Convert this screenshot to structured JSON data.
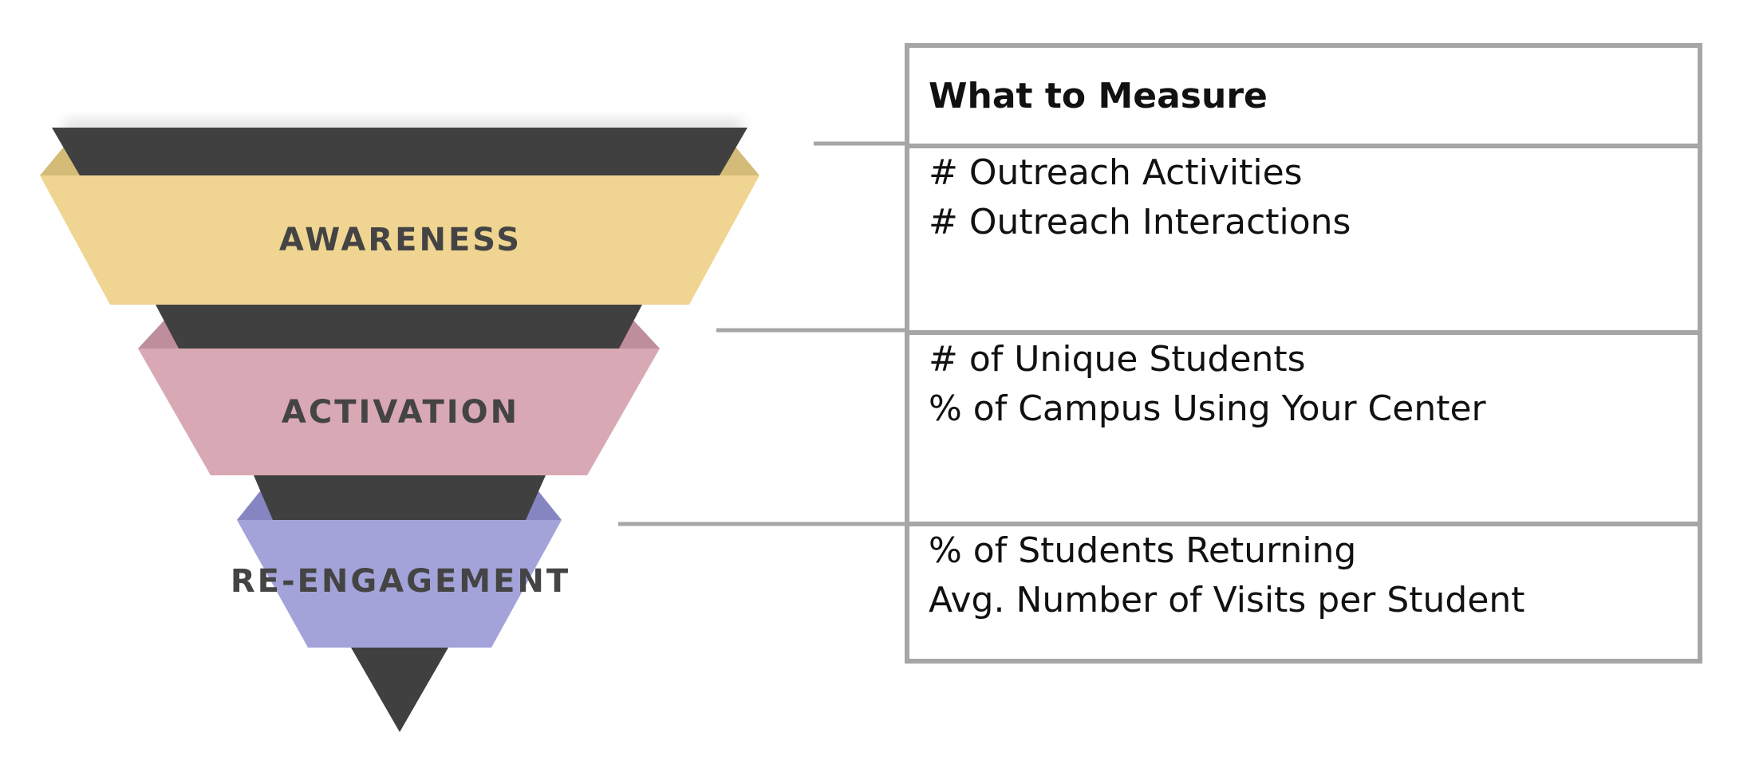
{
  "funnel": {
    "stages": [
      {
        "label": "AWARENESS",
        "color": "#f0d592",
        "edge_color": "#d4bb78"
      },
      {
        "label": "ACTIVATION",
        "color": "#d8a8b5",
        "edge_color": "#bf8e9c"
      },
      {
        "label": "RE-ENGAGEMENT",
        "color": "#a3a3da",
        "edge_color": "#8585c2"
      }
    ],
    "band_color": "#404040",
    "connector_color": "#a6a6a6"
  },
  "table": {
    "header": "What to Measure",
    "rows": [
      {
        "lines": [
          "# Outreach Activities",
          "# Outreach Interactions"
        ]
      },
      {
        "lines": [
          "# of Unique Students",
          "% of Campus Using Your Center"
        ]
      },
      {
        "lines": [
          "% of Students Returning",
          "Avg. Number of Visits per Student"
        ]
      }
    ],
    "border_color": "#a6a6a6"
  }
}
